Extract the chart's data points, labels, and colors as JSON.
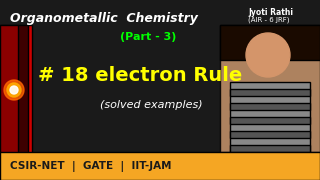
{
  "bg_color": "#1a1a1a",
  "title_text": "Organometallic  Chemistry",
  "title_color": "#ffffff",
  "part_text": "(Part - 3)",
  "part_color": "#00ff00",
  "main_text": "# 18 electron Rule",
  "main_color": "#ffff00",
  "sub_text": "(solved examples)",
  "sub_color": "#ffffff",
  "bottom_bar_color": "#f5a623",
  "bottom_text": "CSIR-NET  |  GATE  |  IIT-JAM",
  "bottom_text_color": "#1a1a1a",
  "name_text": "Jyoti Rathi",
  "name_sub_text": "(AIR - 6 JRF)",
  "name_color": "#ffffff",
  "left_bar_color": "#8b0000",
  "left_glow_color": "#ff4444"
}
